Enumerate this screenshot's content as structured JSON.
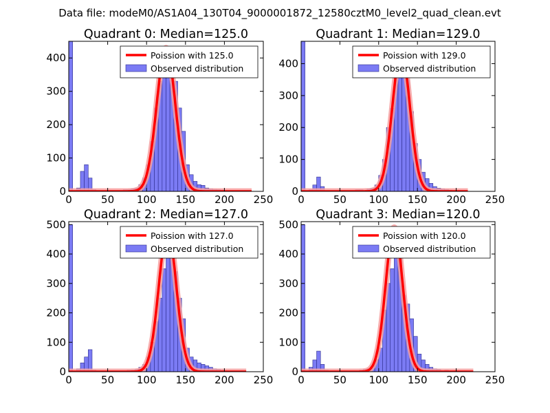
{
  "figure": {
    "suptitle": "Data file: modeM0/AS1A04_130T04_9000001872_12580cztM0_level2_quad_clean.evt"
  },
  "chart_data": [
    {
      "type": "bar",
      "title": "Quadrant 0: Median=125.0",
      "median": 125.0,
      "xlim": [
        0,
        250
      ],
      "ylim": [
        0,
        450
      ],
      "xticks": [
        0,
        50,
        100,
        150,
        200,
        250
      ],
      "yticks": [
        0,
        100,
        200,
        300,
        400
      ],
      "bin_width": 5,
      "bins": [
        [
          0,
          450
        ],
        [
          10,
          10
        ],
        [
          15,
          60
        ],
        [
          20,
          80
        ],
        [
          25,
          40
        ],
        [
          30,
          5
        ],
        [
          45,
          1
        ],
        [
          55,
          1
        ],
        [
          65,
          2
        ],
        [
          70,
          5
        ],
        [
          75,
          5
        ],
        [
          80,
          8
        ],
        [
          85,
          10
        ],
        [
          90,
          20
        ],
        [
          95,
          40
        ],
        [
          100,
          80
        ],
        [
          105,
          150
        ],
        [
          110,
          250
        ],
        [
          115,
          330
        ],
        [
          120,
          380
        ],
        [
          125,
          430
        ],
        [
          130,
          410
        ],
        [
          135,
          330
        ],
        [
          140,
          250
        ],
        [
          145,
          180
        ],
        [
          150,
          80
        ],
        [
          155,
          50
        ],
        [
          160,
          30
        ],
        [
          165,
          20
        ],
        [
          170,
          18
        ],
        [
          175,
          10
        ],
        [
          180,
          8
        ],
        [
          185,
          6
        ],
        [
          190,
          5
        ],
        [
          195,
          4
        ],
        [
          210,
          2
        ],
        [
          220,
          1
        ]
      ],
      "poisson_mean": 125.0,
      "poisson_peak": 430,
      "poisson_sigma": 12,
      "poisson_x_range": [
        0,
        235
      ],
      "legend": [
        "Poission with 125.0",
        "Observed distribution"
      ]
    },
    {
      "type": "bar",
      "title": "Quadrant 1: Median=129.0",
      "median": 129.0,
      "xlim": [
        0,
        250
      ],
      "ylim": [
        0,
        470
      ],
      "xticks": [
        0,
        50,
        100,
        150,
        200,
        250
      ],
      "yticks": [
        0,
        100,
        200,
        300,
        400
      ],
      "bin_width": 5,
      "bins": [
        [
          0,
          470
        ],
        [
          10,
          5
        ],
        [
          15,
          20
        ],
        [
          20,
          45
        ],
        [
          25,
          15
        ],
        [
          35,
          1
        ],
        [
          50,
          2
        ],
        [
          70,
          5
        ],
        [
          75,
          5
        ],
        [
          85,
          8
        ],
        [
          90,
          10
        ],
        [
          95,
          20
        ],
        [
          100,
          50
        ],
        [
          105,
          100
        ],
        [
          110,
          200
        ],
        [
          115,
          260
        ],
        [
          120,
          370
        ],
        [
          125,
          380
        ],
        [
          130,
          420
        ],
        [
          135,
          350
        ],
        [
          140,
          250
        ],
        [
          145,
          150
        ],
        [
          150,
          100
        ],
        [
          155,
          60
        ],
        [
          160,
          40
        ],
        [
          165,
          25
        ],
        [
          170,
          15
        ],
        [
          175,
          10
        ],
        [
          180,
          8
        ],
        [
          185,
          6
        ],
        [
          190,
          4
        ],
        [
          200,
          2
        ]
      ],
      "poisson_mean": 129.0,
      "poisson_peak": 440,
      "poisson_sigma": 11.3,
      "poisson_x_range": [
        0,
        215
      ],
      "legend": [
        "Poission with 129.0",
        "Observed distribution"
      ]
    },
    {
      "type": "bar",
      "title": "Quadrant 2: Median=127.0",
      "median": 127.0,
      "xlim": [
        0,
        250
      ],
      "ylim": [
        0,
        510
      ],
      "xticks": [
        0,
        50,
        100,
        150,
        200,
        250
      ],
      "yticks": [
        0,
        100,
        200,
        300,
        400,
        500
      ],
      "bin_width": 5,
      "bins": [
        [
          0,
          500
        ],
        [
          10,
          10
        ],
        [
          15,
          30
        ],
        [
          20,
          50
        ],
        [
          25,
          75
        ],
        [
          30,
          5
        ],
        [
          50,
          2
        ],
        [
          65,
          2
        ],
        [
          75,
          5
        ],
        [
          80,
          5
        ],
        [
          85,
          8
        ],
        [
          90,
          15
        ],
        [
          95,
          25
        ],
        [
          100,
          50
        ],
        [
          105,
          100
        ],
        [
          110,
          170
        ],
        [
          115,
          250
        ],
        [
          120,
          350
        ],
        [
          125,
          480
        ],
        [
          130,
          400
        ],
        [
          135,
          340
        ],
        [
          140,
          250
        ],
        [
          145,
          180
        ],
        [
          150,
          80
        ],
        [
          155,
          50
        ],
        [
          160,
          40
        ],
        [
          165,
          30
        ],
        [
          170,
          25
        ],
        [
          175,
          20
        ],
        [
          180,
          15
        ],
        [
          185,
          10
        ],
        [
          190,
          8
        ],
        [
          195,
          5
        ],
        [
          200,
          3
        ]
      ],
      "poisson_mean": 127.0,
      "poisson_peak": 480,
      "poisson_sigma": 11.3,
      "poisson_x_range": [
        0,
        228
      ],
      "legend": [
        "Poission with 127.0",
        "Observed distribution"
      ]
    },
    {
      "type": "bar",
      "title": "Quadrant 3: Median=120.0",
      "median": 120.0,
      "xlim": [
        0,
        250
      ],
      "ylim": [
        0,
        510
      ],
      "xticks": [
        0,
        50,
        100,
        150,
        200,
        250
      ],
      "yticks": [
        0,
        100,
        200,
        300,
        400,
        500
      ],
      "bin_width": 5,
      "bins": [
        [
          0,
          500
        ],
        [
          10,
          15
        ],
        [
          15,
          40
        ],
        [
          20,
          70
        ],
        [
          25,
          25
        ],
        [
          30,
          5
        ],
        [
          45,
          2
        ],
        [
          60,
          2
        ],
        [
          75,
          5
        ],
        [
          80,
          8
        ],
        [
          85,
          10
        ],
        [
          90,
          20
        ],
        [
          95,
          40
        ],
        [
          100,
          80
        ],
        [
          105,
          210
        ],
        [
          110,
          300
        ],
        [
          115,
          350
        ],
        [
          120,
          480
        ],
        [
          125,
          420
        ],
        [
          130,
          260
        ],
        [
          135,
          230
        ],
        [
          140,
          180
        ],
        [
          145,
          120
        ],
        [
          150,
          60
        ],
        [
          155,
          40
        ],
        [
          160,
          25
        ],
        [
          165,
          15
        ],
        [
          170,
          10
        ],
        [
          175,
          8
        ],
        [
          185,
          5
        ],
        [
          195,
          3
        ],
        [
          210,
          2
        ]
      ],
      "poisson_mean": 120.0,
      "poisson_peak": 490,
      "poisson_sigma": 11,
      "poisson_x_range": [
        0,
        222
      ],
      "legend": [
        "Poission with 120.0",
        "Observed distribution"
      ]
    }
  ],
  "colors": {
    "hist_fill": "#7b7bf4",
    "hist_edge": "#2c2c8c",
    "line": "#ff0000",
    "line_glow": "#f7a0a0"
  }
}
